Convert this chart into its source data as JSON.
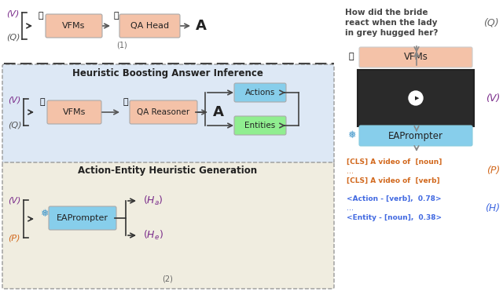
{
  "bg_color": "#ffffff",
  "colors": {
    "purple": "#7B2D8B",
    "orange": "#D2691E",
    "blue": "#4169E1",
    "light_blue_box": "#87CEEB",
    "salmon_box": "#F4C2A8",
    "light_green_box": "#90EE90",
    "gray": "#808080",
    "dark_gray": "#404040",
    "divider": "#404040",
    "snowflake_blue": "#4499CC",
    "mid_bg": "#dde8f5",
    "bot_bg": "#f0ede0"
  },
  "top": {
    "V_label": "(V)",
    "Q_label": "(Q)",
    "A_label": "A",
    "num_label": "(1)",
    "VFMs_text": "VFMs",
    "QAHead_text": "QA Head"
  },
  "mid": {
    "title": "Heuristic Boosting Answer Inference",
    "V_label": "(V)",
    "Q_label": "(Q)",
    "A_label": "A",
    "VFMs_text": "VFMs",
    "QAReasoner_text": "QA Reasoner",
    "Actions_text": "Actions",
    "Entities_text": "Entities"
  },
  "bot": {
    "title": "Action-Entity Heuristic Generation",
    "V_label": "(V)",
    "P_label": "(P)",
    "EAPrompter_text": "EAPrompter",
    "Ha_label": "$(H_a)$",
    "He_label": "$(H_e)$",
    "num_label": "(2)"
  },
  "right": {
    "q_line1": "How did the bride",
    "q_line2": "react when the lady",
    "q_line3": "in grey hugged her?",
    "Q_label": "(Q)",
    "VFMs_text": "VFMs",
    "V_label": "(V)",
    "EAPrompter_text": "EAPrompter",
    "P_label": "(P)",
    "P_line1": "[CLS] A video of  [noun]",
    "P_dots": "...",
    "P_line2": "[CLS] A video of  [verb]",
    "H_line1": "<Action - [verb],  0.78>",
    "H_dots": "...",
    "H_line2": "<Entity - [noun],  0.38>",
    "H_label": "(H)"
  }
}
